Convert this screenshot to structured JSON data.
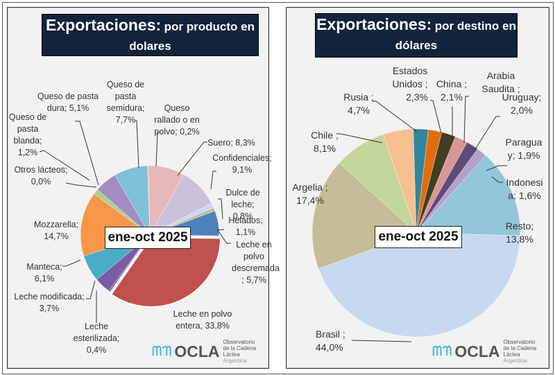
{
  "chart_data": [
    {
      "type": "pie",
      "title": "Exportaciones: por producto en dolares",
      "title_main": "Exportaciones:",
      "title_rest": "por producto en",
      "title_line2": "dolares",
      "period_label": "ene-oct 2025",
      "unit": "%",
      "slices": [
        {
          "name": "Queso rallado o en polvo",
          "value": 0.2,
          "label": "Queso rallado o en polvo; 0,2%",
          "color": "#d9b3c4"
        },
        {
          "name": "Suero",
          "value": 8.3,
          "label": "Suero; 8,3%",
          "color": "#e6b9b8"
        },
        {
          "name": "Confidenciales",
          "value": 9.1,
          "label": "Confidenciales; 9,1%",
          "color": "#ccc1da"
        },
        {
          "name": "Helados",
          "value": 1.1,
          "label": "Helados; 1,1%",
          "color": "#c6d9f1"
        },
        {
          "name": "Dulce de leche",
          "value": 0.8,
          "label": "Dulce de leche; 0,8%",
          "color": "#c4bd97"
        },
        {
          "name": "Leche en polvo descremada",
          "value": 5.7,
          "label": "Leche en polvo descremada; 5,7%",
          "color": "#4f81bd"
        },
        {
          "name": "Leche en polvo entera",
          "value": 33.8,
          "label": "Leche en polvo entera, 33,8%",
          "color": "#c0504d"
        },
        {
          "name": "Leche esterilizada",
          "value": 0.4,
          "label": "Leche esterilizada; 0,4%",
          "color": "#8064a2"
        },
        {
          "name": "Leche modificada",
          "value": 3.7,
          "label": "Leche modificada; 3,7%",
          "color": "#7b5aa6"
        },
        {
          "name": "Manteca",
          "value": 6.1,
          "label": "Manteca; 6,1%",
          "color": "#4bacc6"
        },
        {
          "name": "Mozzarella",
          "value": 14.7,
          "label": "Mozzarella; 14,7%",
          "color": "#f79646"
        },
        {
          "name": "Otros lácteos",
          "value": 0.0,
          "label": "Otros lácteos; 0,0%",
          "color": "#9bbb59"
        },
        {
          "name": "Queso de pasta blanda",
          "value": 1.2,
          "label": "Queso de pasta blanda; 1,2%",
          "color": "#a9d18e"
        },
        {
          "name": "Queso de pasta dura",
          "value": 5.1,
          "label": "Queso de pasta dura; 5,1%",
          "color": "#a28cc1"
        },
        {
          "name": "Queso de pasta semidura",
          "value": 7.7,
          "label": "Queso de pasta semidura; 7,7%",
          "color": "#7fc1d6"
        }
      ]
    },
    {
      "type": "pie",
      "title": "Exportaciones: por destino en dólares",
      "title_main": "Exportaciones:",
      "title_rest": "por destino en",
      "title_line2": "dólares",
      "period_label": "ene-oct 2025",
      "unit": "%",
      "slices": [
        {
          "name": "Rusia",
          "value": 4.7,
          "label": "Rusia ; 4,7%",
          "color": "#fabf8f"
        },
        {
          "name": "Estados Unidos",
          "value": 2.3,
          "label": "Estados Unidos ; 2,3%",
          "color": "#31859c"
        },
        {
          "name": "China",
          "value": 2.1,
          "label": "China ; 2,1%",
          "color": "#e46c0a"
        },
        {
          "name": "Arabia Saudita",
          "value": 2.2,
          "label": "Arabia Saudita ;",
          "color": "#3f3f26"
        },
        {
          "name": "Uruguay",
          "value": 2.0,
          "label": "Uruguay; 2,0%",
          "color": "#d99694"
        },
        {
          "name": "Paraguay",
          "value": 1.9,
          "label": "Paraguay; 1,9%",
          "color": "#604a7b"
        },
        {
          "name": "Indonesia",
          "value": 1.6,
          "label": "Indonesia; 1,6%",
          "color": "#b3a2c7"
        },
        {
          "name": "Resto",
          "value": 13.8,
          "label": "Resto; 13,8%",
          "color": "#93c6d8"
        },
        {
          "name": "Brasil",
          "value": 44.0,
          "label": "Brasil ; 44,0%",
          "color": "#c6d9f0"
        },
        {
          "name": "Argelia",
          "value": 17.4,
          "label": "Argelia ; 17,4%",
          "color": "#c4bd97"
        },
        {
          "name": "Chile",
          "value": 8.1,
          "label": "Chile ; 8,1%",
          "color": "#c3d69b"
        }
      ]
    }
  ],
  "left_labels": {
    "queso_dura": [
      "Queso de pasta",
      "dura; 5,1%"
    ],
    "queso_semidura": [
      "Queso de",
      "pasta",
      "semidura;",
      "7,7%"
    ],
    "queso_rallado": [
      "Queso",
      "rallado o en",
      "polvo; 0,2%"
    ],
    "queso_blanda": [
      "Queso de",
      "pasta",
      "blanda;",
      "1,2%"
    ],
    "suero": [
      "Suero; 8,3%"
    ],
    "confidenciales": [
      "Confidenciales;",
      "9,1%"
    ],
    "otros": [
      "Otros lácteos;",
      "0,0%"
    ],
    "dulce": [
      "Dulce de leche;",
      "0,8%"
    ],
    "helados": [
      "Helados;",
      "1,1%"
    ],
    "mozzarella": [
      "Mozzarella;",
      "14,7%"
    ],
    "descremada": [
      "Leche en",
      "polvo",
      "descremada",
      "; 5,7%"
    ],
    "manteca": [
      "Manteca;",
      "6,1%"
    ],
    "modificada": [
      "Leche modificada;",
      "3,7%"
    ],
    "esterilizada": [
      "Leche",
      "esterilizada;",
      "0,4%"
    ],
    "entera": [
      "Leche en polvo",
      "entera, 33,8%"
    ]
  },
  "right_labels": {
    "eeuu": [
      "Estados",
      "Unidos ;",
      "2,3%"
    ],
    "china": [
      "China ;",
      "2,1%"
    ],
    "arabia": [
      "Arabia",
      "Saudita ;"
    ],
    "uruguay": [
      "Uruguay;",
      "2,0%"
    ],
    "rusia": [
      "Rusia ;",
      "4,7%"
    ],
    "chile": [
      "Chile ;",
      "8,1%"
    ],
    "paraguay": [
      "Paragua",
      "y; 1,9%"
    ],
    "argelia": [
      "Argelia ;",
      "17,4%"
    ],
    "indonesia": [
      "Indonesi",
      "a; 1,6%"
    ],
    "resto": [
      "Resto;",
      "13,8%"
    ],
    "brasil": [
      "Brasil ;",
      "44,0%"
    ]
  },
  "logo": {
    "name": "OCLA",
    "line1": "Observatorio",
    "line2": "de la Cadena Láctea",
    "line3": "Argentina",
    "wave_color": "#3fb4d8",
    "text_color": "#555555"
  }
}
